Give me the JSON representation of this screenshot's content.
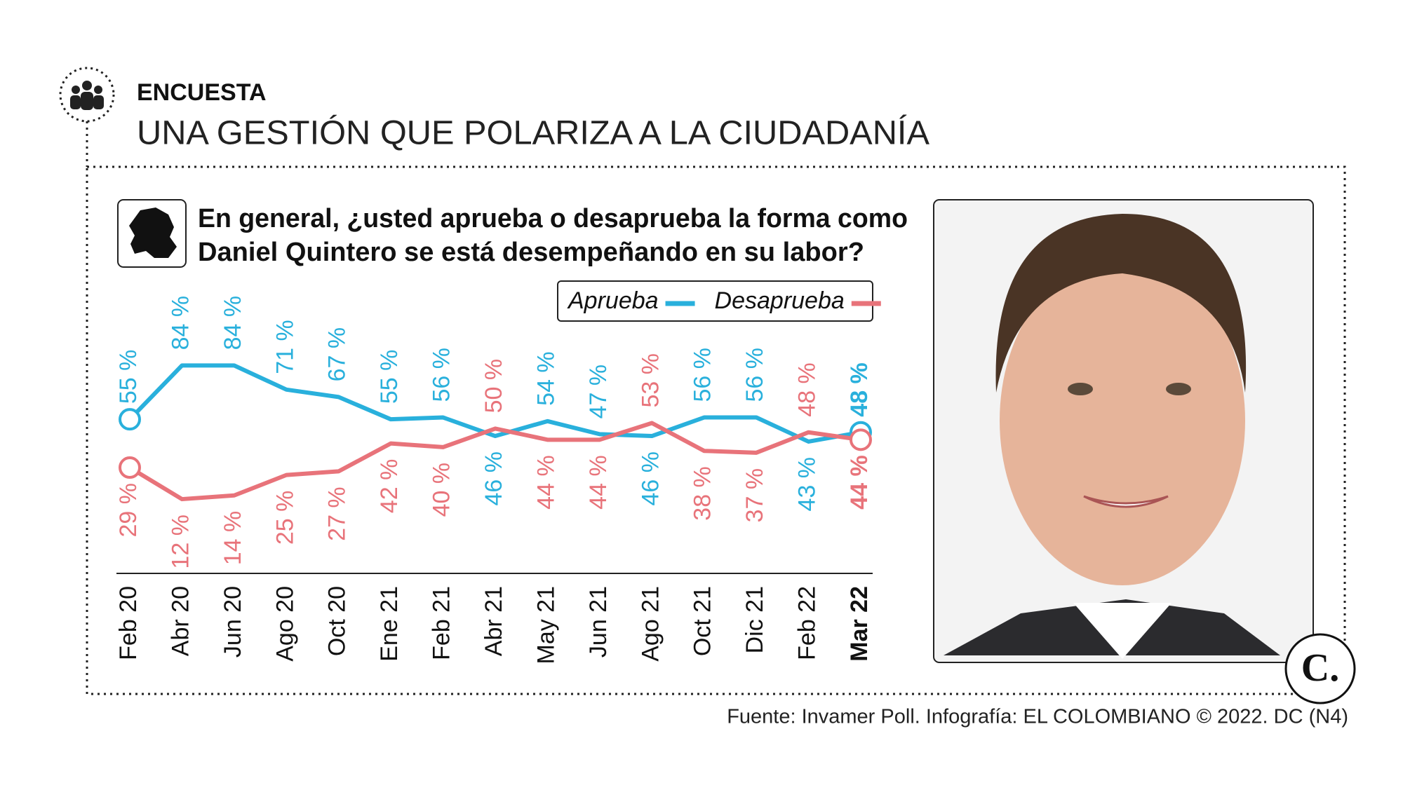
{
  "kicker": "ENCUESTA",
  "headline": "UNA GESTIÓN QUE POLARIZA A LA CIUDADANÍA",
  "chart_data": {
    "type": "line",
    "title": [
      "En general, ¿usted aprueba o desaprueba la forma como",
      "Daniel Quintero se está desempeñando en su labor?"
    ],
    "categories": [
      "Feb 20",
      "Abr 20",
      "Jun 20",
      "Ago 20",
      "Oct 20",
      "Ene 21",
      "Feb 21",
      "Abr 21",
      "May 21",
      "Jun 21",
      "Ago 21",
      "Oct 21",
      "Dic 21",
      "Feb 22",
      "Mar 22"
    ],
    "series": [
      {
        "name": "Aprueba",
        "color": "#29b0dc",
        "values": [
          55,
          84,
          84,
          71,
          67,
          55,
          56,
          46,
          54,
          47,
          46,
          56,
          56,
          43,
          48
        ],
        "value_labels": [
          "55 %",
          "84 %",
          "84 %",
          "71 %",
          "67 %",
          "55 %",
          "56 %",
          "46 %",
          "54 %",
          "47 %",
          "46 %",
          "56 %",
          "56 %",
          "43 %",
          "48 %"
        ]
      },
      {
        "name": "Desaprueba",
        "color": "#e8737a",
        "values": [
          29,
          12,
          14,
          25,
          27,
          42,
          40,
          50,
          44,
          44,
          53,
          38,
          37,
          48,
          44
        ],
        "value_labels": [
          "29 %",
          "12 %",
          "14 %",
          "25 %",
          "27 %",
          "42 %",
          "40 %",
          "50 %",
          "44 %",
          "44 %",
          "53 %",
          "38 %",
          "37 %",
          "48 %",
          "44 %"
        ]
      }
    ],
    "ylim": [
      -28,
      100
    ],
    "legend": "top-right"
  },
  "source": "Fuente: Invamer Poll. Infografía: EL COLOMBIANO © 2022. DC (N4)",
  "logo": "C."
}
